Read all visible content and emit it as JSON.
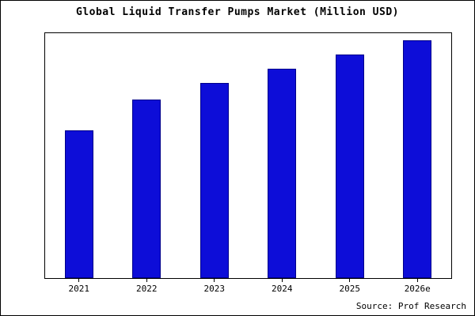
{
  "title": "Global Liquid Transfer Pumps Market (Million USD)",
  "source": "Source: Prof Research",
  "colors": {
    "bar_fill": "#0d0dd8",
    "bar_border": "#00008b",
    "frame_border": "#000000",
    "background": "#ffffff"
  },
  "chart_data": {
    "type": "bar",
    "categories": [
      "2021",
      "2022",
      "2023",
      "2024",
      "2025",
      "2026e"
    ],
    "values": [
      62,
      75,
      82,
      88,
      94,
      100
    ],
    "title": "Global Liquid Transfer Pumps Market (Million USD)",
    "xlabel": "",
    "ylabel": "",
    "ylim": [
      0,
      103
    ],
    "grid": false,
    "legend": false,
    "units": "relative index (no y-axis labels shown)",
    "annotation": "Source: Prof Research"
  }
}
